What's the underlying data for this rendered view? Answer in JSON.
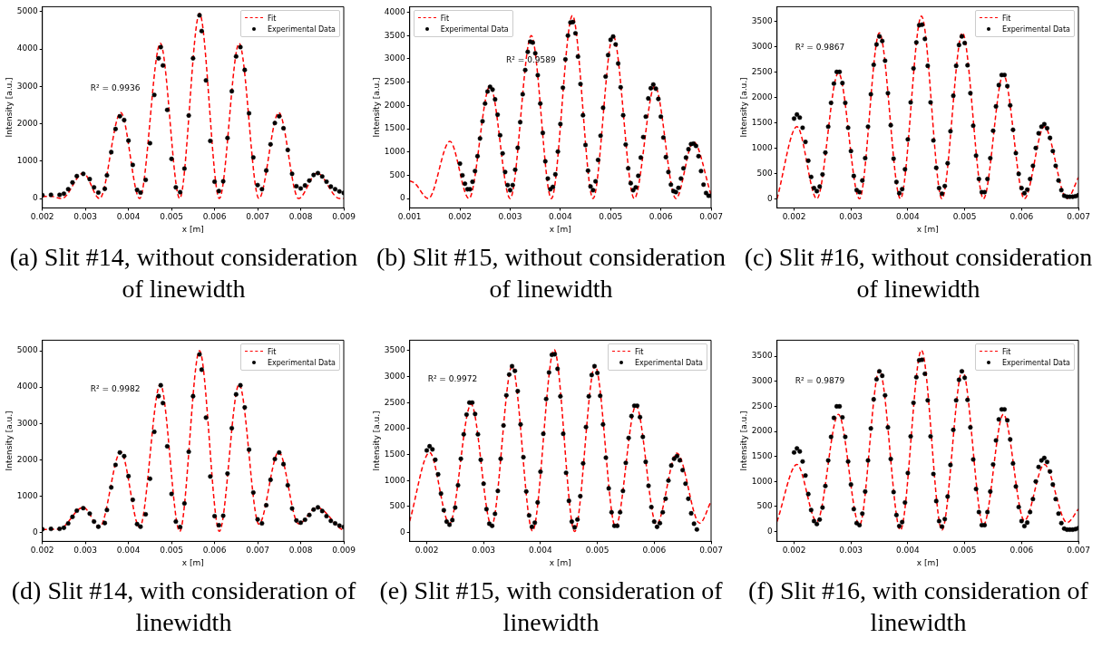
{
  "chart_data": [
    {
      "type": "line",
      "xlabel": "x [m]",
      "ylabel": "Intensity [a.u.]",
      "legend": "top right",
      "xlim": [
        0.002,
        0.009
      ],
      "xticks": [
        0.002,
        0.003,
        0.004,
        0.005,
        0.006,
        0.007,
        0.008,
        0.009
      ],
      "ylim": [
        -250,
        5130
      ],
      "yticks": [
        0,
        1000,
        2000,
        3000,
        4000,
        5000
      ],
      "annotations": [
        "R² = 0.9936",
        "(a) Slit #14, without consideration of linewidth"
      ],
      "series": [
        {
          "name": "Fit",
          "type": "line",
          "color": "#ff0000",
          "line_style": "dashed",
          "marker": "none",
          "x": [
            0.002,
            0.0022,
            0.00245,
            0.00295,
            0.00333,
            0.00382,
            0.00426,
            0.00474,
            0.00519,
            0.00565,
            0.00611,
            0.00657,
            0.00703,
            0.00749,
            0.00795,
            0.00838,
            0.0089,
            0.009
          ],
          "values": [
            50,
            60,
            0,
            680,
            0,
            2300,
            0,
            4150,
            0,
            4950,
            0,
            4150,
            0,
            2300,
            0,
            680,
            0,
            0
          ]
        },
        {
          "name": "Experimental Data",
          "type": "scatter",
          "color": "#000000",
          "marker": "circle",
          "x": [
            0.002,
            0.0022,
            0.0024,
            0.0025,
            0.0026,
            0.0027,
            0.0028,
            0.00295,
            0.0031,
            0.0032,
            0.0033,
            0.00345,
            0.0035,
            0.0036,
            0.0037,
            0.0038,
            0.0039,
            0.004,
            0.0041,
            0.0042,
            0.00428,
            0.0044,
            0.0045,
            0.0046,
            0.0047,
            0.00475,
            0.0048,
            0.0049,
            0.005,
            0.0051,
            0.0052,
            0.0053,
            0.0054,
            0.0055,
            0.00565,
            0.0057,
            0.0058,
            0.0059,
            0.006,
            0.0061,
            0.0062,
            0.0063,
            0.0064,
            0.0065,
            0.0066,
            0.0067,
            0.0068,
            0.0069,
            0.007,
            0.0071,
            0.0072,
            0.0073,
            0.0074,
            0.0075,
            0.0076,
            0.0077,
            0.0078,
            0.0079,
            0.008,
            0.0081,
            0.0082,
            0.0083,
            0.0084,
            0.0085,
            0.0086,
            0.0087,
            0.0088,
            0.0089,
            0.009
          ],
          "values": [
            90,
            100,
            100,
            130,
            250,
            430,
            600,
            660,
            520,
            300,
            160,
            260,
            620,
            1240,
            1860,
            2200,
            2100,
            1550,
            900,
            230,
            160,
            500,
            1480,
            2770,
            3750,
            4050,
            3560,
            2370,
            1060,
            300,
            170,
            800,
            2220,
            3750,
            4900,
            4480,
            3160,
            1540,
            450,
            200,
            460,
            1620,
            2870,
            3800,
            4050,
            3440,
            2280,
            1100,
            360,
            250,
            750,
            1450,
            2020,
            2200,
            1880,
            1300,
            660,
            330,
            270,
            350,
            480,
            630,
            680,
            590,
            450,
            320,
            250,
            190,
            150
          ]
        }
      ]
    },
    {
      "type": "line",
      "xlabel": "x [m]",
      "ylabel": "Intensity [a.u.]",
      "legend": "top left",
      "xlim": [
        0.001,
        0.007
      ],
      "xticks": [
        0.001,
        0.002,
        0.003,
        0.004,
        0.005,
        0.006,
        0.007
      ],
      "ylim": [
        -200,
        4120
      ],
      "yticks": [
        0,
        500,
        1000,
        1500,
        2000,
        2500,
        3000,
        3500,
        4000
      ],
      "annotations": [
        "R² = 0.9589",
        "(b) Slit #15, without consideration of linewidth"
      ],
      "series": [
        {
          "name": "Fit",
          "type": "line",
          "color": "#ff0000",
          "line_style": "dashed",
          "marker": "none",
          "x": [
            0.001,
            0.0011,
            0.00137,
            0.0018,
            0.00218,
            0.0026,
            0.003,
            0.00342,
            0.00382,
            0.00424,
            0.00465,
            0.00505,
            0.00547,
            0.00588,
            0.0063,
            0.00665,
            0.007
          ],
          "values": [
            380,
            330,
            0,
            1230,
            0,
            2420,
            0,
            3500,
            0,
            3930,
            0,
            3500,
            0,
            2420,
            0,
            1220,
            80
          ]
        },
        {
          "name": "Experimental Data",
          "type": "scatter",
          "color": "#000000",
          "marker": "circle",
          "x": [
            0.002,
            0.00205,
            0.0021,
            0.00215,
            0.0022,
            0.00225,
            0.0023,
            0.00235,
            0.0024,
            0.00245,
            0.0025,
            0.00255,
            0.0026,
            0.00265,
            0.0027,
            0.00275,
            0.0028,
            0.00285,
            0.0029,
            0.00295,
            0.003,
            0.00305,
            0.0031,
            0.00315,
            0.0032,
            0.00325,
            0.0033,
            0.00335,
            0.0034,
            0.00345,
            0.0035,
            0.00355,
            0.0036,
            0.00365,
            0.0037,
            0.00375,
            0.0038,
            0.00385,
            0.0039,
            0.00395,
            0.004,
            0.00405,
            0.0041,
            0.00415,
            0.0042,
            0.00425,
            0.0043,
            0.00435,
            0.0044,
            0.00445,
            0.0045,
            0.00455,
            0.0046,
            0.00465,
            0.0047,
            0.00475,
            0.0048,
            0.00485,
            0.0049,
            0.00495,
            0.005,
            0.00505,
            0.0051,
            0.00515,
            0.0052,
            0.00525,
            0.0053,
            0.00535,
            0.0054,
            0.00545,
            0.0055,
            0.00555,
            0.0056,
            0.00565,
            0.0057,
            0.00575,
            0.0058,
            0.00585,
            0.0059,
            0.00595,
            0.006,
            0.00605,
            0.0061,
            0.00615,
            0.0062,
            0.00625,
            0.0063,
            0.00635,
            0.0064,
            0.00645,
            0.0065,
            0.00655,
            0.0066,
            0.00665,
            0.0067,
            0.00675,
            0.0068,
            0.00685,
            0.0069,
            0.00695,
            0.007
          ],
          "values": [
            750,
            500,
            320,
            200,
            200,
            360,
            590,
            910,
            1290,
            1660,
            2040,
            2300,
            2400,
            2340,
            2130,
            1800,
            1360,
            970,
            570,
            290,
            180,
            290,
            620,
            1090,
            1640,
            2240,
            2760,
            3150,
            3370,
            3350,
            3120,
            2650,
            2040,
            1410,
            800,
            430,
            200,
            250,
            520,
            1010,
            1600,
            2380,
            2990,
            3500,
            3780,
            3790,
            3550,
            3050,
            2460,
            1790,
            1150,
            600,
            260,
            180,
            370,
            830,
            1350,
            1950,
            2620,
            3080,
            3410,
            3480,
            3310,
            2900,
            2390,
            1790,
            1160,
            650,
            330,
            180,
            240,
            490,
            880,
            1320,
            1760,
            2150,
            2370,
            2450,
            2360,
            2140,
            1760,
            1310,
            890,
            570,
            300,
            160,
            140,
            230,
            430,
            650,
            880,
            1060,
            1170,
            1180,
            1130,
            910,
            590,
            300,
            120,
            60,
            60
          ]
        }
      ]
    },
    {
      "type": "line",
      "xlabel": "x [m]",
      "ylabel": "Intensity [a.u.]",
      "legend": "top right",
      "xlim": [
        0.0017,
        0.007
      ],
      "xticks": [
        0.002,
        0.003,
        0.004,
        0.005,
        0.006,
        0.007
      ],
      "ylim": [
        -180,
        3785
      ],
      "yticks": [
        0,
        500,
        1000,
        1500,
        2000,
        2500,
        3000,
        3500
      ],
      "annotations": [
        "R² = 0.9867",
        "(c) Slit #16, without consideration of linewidth"
      ],
      "series": [
        {
          "name": "Fit",
          "type": "line",
          "color": "#ff0000",
          "line_style": "dashed",
          "marker": "none",
          "x": [
            0.0017,
            0.00205,
            0.0024,
            0.00278,
            0.00315,
            0.0035,
            0.00387,
            0.00424,
            0.0046,
            0.00496,
            0.00533,
            0.00568,
            0.00605,
            0.0064,
            0.0068,
            0.007
          ],
          "values": [
            0,
            1420,
            0,
            2480,
            0,
            3270,
            0,
            3600,
            0,
            3270,
            0,
            2450,
            0,
            1420,
            0,
            420
          ]
        },
        {
          "name": "Experimental Data",
          "type": "scatter",
          "color": "#000000",
          "marker": "circle",
          "x": [
            0.002,
            0.00205,
            0.0021,
            0.00215,
            0.0022,
            0.00225,
            0.0023,
            0.00235,
            0.0024,
            0.00245,
            0.0025,
            0.00255,
            0.0026,
            0.00265,
            0.0027,
            0.00275,
            0.0028,
            0.00285,
            0.0029,
            0.00295,
            0.003,
            0.00305,
            0.0031,
            0.00315,
            0.0032,
            0.00325,
            0.0033,
            0.00335,
            0.0034,
            0.00345,
            0.0035,
            0.00355,
            0.0036,
            0.00365,
            0.0037,
            0.00375,
            0.0038,
            0.00385,
            0.0039,
            0.00395,
            0.004,
            0.00405,
            0.0041,
            0.00415,
            0.0042,
            0.00425,
            0.0043,
            0.00435,
            0.0044,
            0.00445,
            0.0045,
            0.00455,
            0.0046,
            0.00465,
            0.0047,
            0.00475,
            0.0048,
            0.00485,
            0.0049,
            0.00495,
            0.005,
            0.00505,
            0.0051,
            0.00515,
            0.0052,
            0.00525,
            0.0053,
            0.00535,
            0.0054,
            0.00545,
            0.0055,
            0.00555,
            0.0056,
            0.00565,
            0.0057,
            0.00575,
            0.0058,
            0.00585,
            0.0059,
            0.00595,
            0.006,
            0.00605,
            0.0061,
            0.00615,
            0.0062,
            0.00625,
            0.0063,
            0.00635,
            0.0064,
            0.00645,
            0.0065,
            0.00655,
            0.0066,
            0.00665,
            0.0067,
            0.00675,
            0.0068,
            0.00685,
            0.0069,
            0.00695,
            0.007
          ],
          "values": [
            1580,
            1660,
            1600,
            1400,
            1120,
            750,
            430,
            210,
            150,
            240,
            480,
            910,
            1420,
            1890,
            2270,
            2500,
            2500,
            2280,
            1890,
            1400,
            940,
            450,
            170,
            130,
            360,
            800,
            1420,
            2060,
            2640,
            3040,
            3200,
            3110,
            2720,
            2080,
            1450,
            790,
            330,
            110,
            190,
            580,
            1170,
            1900,
            2570,
            3080,
            3420,
            3430,
            3150,
            2620,
            1900,
            1150,
            610,
            210,
            100,
            250,
            700,
            1330,
            2030,
            2620,
            3030,
            3200,
            3070,
            2630,
            2080,
            1440,
            850,
            390,
            130,
            130,
            390,
            800,
            1340,
            1820,
            2240,
            2440,
            2440,
            2220,
            1840,
            1360,
            900,
            490,
            210,
            110,
            180,
            390,
            650,
            1000,
            1290,
            1420,
            1470,
            1390,
            1200,
            940,
            650,
            360,
            170,
            60,
            40,
            40,
            40,
            50,
            70
          ]
        }
      ]
    },
    {
      "type": "line",
      "xlabel": "x [m]",
      "ylabel": "Intensity [a.u.]",
      "legend": "top right",
      "xlim": [
        0.002,
        0.009
      ],
      "xticks": [
        0.002,
        0.003,
        0.004,
        0.005,
        0.006,
        0.007,
        0.008,
        0.009
      ],
      "ylim": [
        -245,
        5290
      ],
      "yticks": [
        0,
        1000,
        2000,
        3000,
        4000,
        5000
      ],
      "annotations": [
        "R² = 0.9982",
        "(d) Slit #14, with consideration of linewidth"
      ],
      "series": [
        {
          "name": "Fit",
          "type": "line",
          "color": "#ff0000",
          "line_style": "dashed",
          "marker": "none",
          "x": [
            0.002,
            0.0024,
            0.00295,
            0.00333,
            0.00382,
            0.00426,
            0.00474,
            0.00519,
            0.00565,
            0.00611,
            0.00657,
            0.00703,
            0.00749,
            0.00795,
            0.00838,
            0.0089,
            0.009
          ],
          "values": [
            80,
            100,
            690,
            150,
            2220,
            140,
            4080,
            30,
            5000,
            30,
            4080,
            230,
            2220,
            240,
            690,
            130,
            50
          ]
        },
        {
          "name": "Experimental Data",
          "type": "scatter",
          "color": "#000000",
          "marker": "circle",
          "x": [
            0.002,
            0.0022,
            0.0024,
            0.0025,
            0.0026,
            0.0027,
            0.0028,
            0.00295,
            0.0031,
            0.0032,
            0.0033,
            0.00345,
            0.0035,
            0.0036,
            0.0037,
            0.0038,
            0.0039,
            0.004,
            0.0041,
            0.0042,
            0.00428,
            0.0044,
            0.0045,
            0.0046,
            0.0047,
            0.00475,
            0.0048,
            0.0049,
            0.005,
            0.0051,
            0.0052,
            0.0053,
            0.0054,
            0.0055,
            0.00565,
            0.0057,
            0.0058,
            0.0059,
            0.006,
            0.0061,
            0.0062,
            0.0063,
            0.0064,
            0.0065,
            0.0066,
            0.0067,
            0.0068,
            0.0069,
            0.007,
            0.0071,
            0.0072,
            0.0073,
            0.0074,
            0.0075,
            0.0076,
            0.0077,
            0.0078,
            0.0079,
            0.008,
            0.0081,
            0.0082,
            0.0083,
            0.0084,
            0.0085,
            0.0086,
            0.0087,
            0.0088,
            0.0089,
            0.009
          ],
          "values": [
            90,
            100,
            100,
            130,
            250,
            430,
            600,
            670,
            520,
            300,
            160,
            260,
            620,
            1240,
            1860,
            2200,
            2100,
            1550,
            900,
            230,
            160,
            500,
            1480,
            2770,
            3750,
            4050,
            3560,
            2370,
            1060,
            300,
            150,
            800,
            2220,
            3750,
            4900,
            4480,
            3160,
            1540,
            450,
            200,
            460,
            1620,
            2870,
            3800,
            4050,
            3440,
            2280,
            1100,
            360,
            250,
            750,
            1450,
            2020,
            2200,
            1880,
            1300,
            660,
            330,
            270,
            350,
            480,
            630,
            690,
            590,
            450,
            320,
            250,
            190,
            150
          ]
        }
      ]
    },
    {
      "type": "line",
      "xlabel": "x [m]",
      "ylabel": "Intensity [a.u.]",
      "legend": "top right",
      "xlim": [
        0.0017,
        0.007
      ],
      "xticks": [
        0.002,
        0.003,
        0.004,
        0.005,
        0.006,
        0.007
      ],
      "ylim": [
        -170,
        3700
      ],
      "yticks": [
        0,
        500,
        1000,
        1500,
        2000,
        2500,
        3000,
        3500
      ],
      "annotations": [
        "R² = 0.9972",
        "(e) Slit #15, with consideration of linewidth"
      ],
      "series": [
        {
          "name": "Fit",
          "type": "line",
          "color": "#ff0000",
          "line_style": "dashed",
          "marker": "none",
          "x": [
            0.0017,
            0.00205,
            0.0024,
            0.00278,
            0.00314,
            0.0035,
            0.00386,
            0.00424,
            0.0046,
            0.00496,
            0.00532,
            0.00568,
            0.00604,
            0.0064,
            0.0068,
            0.007
          ],
          "values": [
            220,
            1540,
            170,
            2470,
            130,
            3200,
            30,
            3520,
            20,
            3210,
            110,
            2440,
            160,
            1530,
            180,
            600
          ]
        },
        {
          "name": "Experimental Data",
          "type": "scatter",
          "color": "#000000",
          "marker": "circle",
          "x": [
            0.002,
            0.00205,
            0.0021,
            0.00215,
            0.0022,
            0.00225,
            0.0023,
            0.00235,
            0.0024,
            0.00245,
            0.0025,
            0.00255,
            0.0026,
            0.00265,
            0.0027,
            0.00275,
            0.0028,
            0.00285,
            0.0029,
            0.00295,
            0.003,
            0.00305,
            0.0031,
            0.00315,
            0.0032,
            0.00325,
            0.0033,
            0.00335,
            0.0034,
            0.00345,
            0.0035,
            0.00355,
            0.0036,
            0.00365,
            0.0037,
            0.00375,
            0.0038,
            0.00385,
            0.0039,
            0.00395,
            0.004,
            0.00405,
            0.0041,
            0.00415,
            0.0042,
            0.00425,
            0.0043,
            0.00435,
            0.0044,
            0.00445,
            0.0045,
            0.00455,
            0.0046,
            0.00465,
            0.0047,
            0.00475,
            0.0048,
            0.00485,
            0.0049,
            0.00495,
            0.005,
            0.00505,
            0.0051,
            0.00515,
            0.0052,
            0.00525,
            0.0053,
            0.00535,
            0.0054,
            0.00545,
            0.0055,
            0.00555,
            0.0056,
            0.00565,
            0.0057,
            0.00575,
            0.0058,
            0.00585,
            0.0059,
            0.00595,
            0.006,
            0.00605,
            0.0061,
            0.00615,
            0.0062,
            0.00625,
            0.0063,
            0.00635,
            0.0064,
            0.00645,
            0.0065,
            0.00655,
            0.0066,
            0.00665,
            0.0067,
            0.00675
          ],
          "values": [
            1580,
            1660,
            1600,
            1400,
            1120,
            750,
            430,
            210,
            150,
            240,
            480,
            910,
            1420,
            1890,
            2270,
            2500,
            2500,
            2280,
            1890,
            1400,
            940,
            450,
            170,
            130,
            360,
            800,
            1420,
            2060,
            2640,
            3040,
            3200,
            3110,
            2720,
            2080,
            1450,
            790,
            330,
            110,
            190,
            580,
            1170,
            1900,
            2570,
            3080,
            3420,
            3430,
            3150,
            2620,
            1900,
            1150,
            610,
            210,
            100,
            250,
            700,
            1330,
            2030,
            2620,
            3030,
            3200,
            3070,
            2630,
            2080,
            1440,
            850,
            390,
            130,
            130,
            390,
            800,
            1340,
            1820,
            2240,
            2440,
            2440,
            2220,
            1840,
            1360,
            900,
            490,
            210,
            110,
            180,
            390,
            650,
            1000,
            1290,
            1420,
            1470,
            1390,
            1200,
            940,
            650,
            370,
            170,
            60
          ]
        }
      ]
    },
    {
      "type": "line",
      "xlabel": "x [m]",
      "ylabel": "Intensity [a.u.]",
      "legend": "top right",
      "xlim": [
        0.0017,
        0.007
      ],
      "xticks": [
        0.002,
        0.003,
        0.004,
        0.005,
        0.006,
        0.007
      ],
      "ylim": [
        -195,
        3820
      ],
      "yticks": [
        0,
        500,
        1000,
        1500,
        2000,
        2500,
        3000,
        3500
      ],
      "annotations": [
        "R² = 0.9879",
        "(f) Slit #16, with consideration of linewidth"
      ],
      "series": [
        {
          "name": "Fit",
          "type": "line",
          "color": "#ff0000",
          "line_style": "dashed",
          "marker": "none",
          "x": [
            0.0017,
            0.00205,
            0.0024,
            0.00278,
            0.00315,
            0.0035,
            0.00387,
            0.00424,
            0.0046,
            0.00496,
            0.00533,
            0.00568,
            0.00605,
            0.0064,
            0.0068,
            0.007
          ],
          "values": [
            200,
            1340,
            200,
            2340,
            130,
            3220,
            30,
            3620,
            30,
            3220,
            130,
            2340,
            220,
            1340,
            180,
            450
          ]
        },
        {
          "name": "Experimental Data",
          "type": "scatter",
          "color": "#000000",
          "marker": "circle",
          "x": [
            0.002,
            0.00205,
            0.0021,
            0.00215,
            0.0022,
            0.00225,
            0.0023,
            0.00235,
            0.0024,
            0.00245,
            0.0025,
            0.00255,
            0.0026,
            0.00265,
            0.0027,
            0.00275,
            0.0028,
            0.00285,
            0.0029,
            0.00295,
            0.003,
            0.00305,
            0.0031,
            0.00315,
            0.0032,
            0.00325,
            0.0033,
            0.00335,
            0.0034,
            0.00345,
            0.0035,
            0.00355,
            0.0036,
            0.00365,
            0.0037,
            0.00375,
            0.0038,
            0.00385,
            0.0039,
            0.00395,
            0.004,
            0.00405,
            0.0041,
            0.00415,
            0.0042,
            0.00425,
            0.0043,
            0.00435,
            0.0044,
            0.00445,
            0.0045,
            0.00455,
            0.0046,
            0.00465,
            0.0047,
            0.00475,
            0.0048,
            0.00485,
            0.0049,
            0.00495,
            0.005,
            0.00505,
            0.0051,
            0.00515,
            0.0052,
            0.00525,
            0.0053,
            0.00535,
            0.0054,
            0.00545,
            0.0055,
            0.00555,
            0.0056,
            0.00565,
            0.0057,
            0.00575,
            0.0058,
            0.00585,
            0.0059,
            0.00595,
            0.006,
            0.00605,
            0.0061,
            0.00615,
            0.0062,
            0.00625,
            0.0063,
            0.00635,
            0.0064,
            0.00645,
            0.0065,
            0.00655,
            0.0066,
            0.00665,
            0.0067,
            0.00675,
            0.0068,
            0.00685,
            0.0069,
            0.00695,
            0.007
          ],
          "values": [
            1580,
            1660,
            1600,
            1400,
            1120,
            750,
            430,
            210,
            150,
            240,
            480,
            910,
            1420,
            1890,
            2270,
            2500,
            2500,
            2280,
            1890,
            1400,
            940,
            450,
            170,
            130,
            360,
            800,
            1420,
            2060,
            2640,
            3040,
            3200,
            3110,
            2720,
            2080,
            1450,
            790,
            330,
            110,
            190,
            580,
            1170,
            1900,
            2570,
            3080,
            3420,
            3430,
            3150,
            2620,
            1900,
            1150,
            610,
            210,
            100,
            250,
            700,
            1330,
            2030,
            2620,
            3030,
            3200,
            3070,
            2630,
            2080,
            1440,
            850,
            390,
            130,
            130,
            390,
            800,
            1340,
            1820,
            2240,
            2440,
            2440,
            2220,
            1840,
            1360,
            900,
            490,
            210,
            110,
            180,
            390,
            650,
            1000,
            1290,
            1420,
            1470,
            1390,
            1200,
            940,
            650,
            360,
            170,
            60,
            40,
            40,
            40,
            50,
            70
          ]
        }
      ]
    }
  ]
}
